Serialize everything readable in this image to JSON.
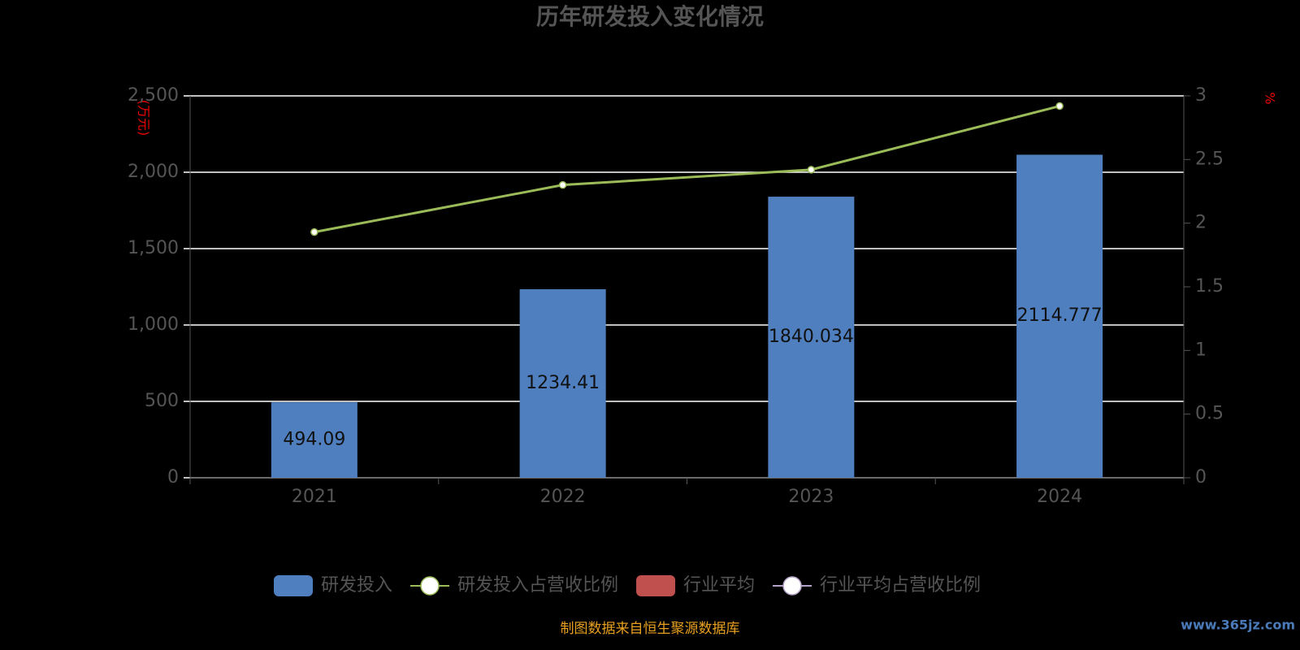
{
  "chart_data": {
    "type": "bar",
    "title": "历年研发投入变化情况",
    "y_label": "(万元)",
    "y2_label": "%",
    "categories": [
      "2021",
      "2022",
      "2023",
      "2024"
    ],
    "series": [
      {
        "name": "研发投入",
        "type": "bar",
        "color": "#4f7fbf",
        "values": [
          494.09,
          1234.41,
          1840.034,
          2114.777
        ]
      },
      {
        "name": "研发投入占营收比例",
        "type": "line",
        "axis": "y2",
        "color": "#9bbb59",
        "values": [
          1.93,
          2.3,
          2.42,
          2.92
        ]
      },
      {
        "name": "行业平均",
        "type": "bar",
        "color": "#c0504d",
        "values": [
          null,
          null,
          null,
          null
        ]
      },
      {
        "name": "行业平均占营收比例",
        "type": "line",
        "axis": "y2",
        "color": "#b3a2c7",
        "values": [
          null,
          null,
          null,
          null
        ]
      }
    ],
    "ylim": [
      0,
      2500
    ],
    "yticks": [
      0,
      500,
      {
        "value": 1000,
        "label": "1,000"
      },
      {
        "value": 1500,
        "label": "1,500"
      },
      {
        "value": 2000,
        "label": "2,000"
      },
      {
        "value": 2500,
        "label": "2,500"
      }
    ],
    "y2lim": [
      0,
      3
    ],
    "y2ticks": [
      0,
      0.5,
      1,
      1.5,
      2,
      2.5,
      3
    ],
    "grid": true,
    "legend": "bottom",
    "source": "制图数据来自恒生聚源数据库",
    "watermark": "www.365jz.com"
  }
}
